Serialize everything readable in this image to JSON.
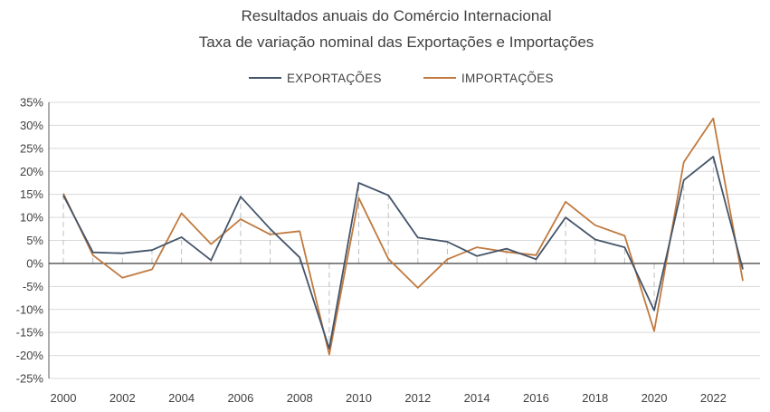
{
  "chart_data": {
    "type": "line",
    "title": "Resultados anuais do Comércio Internacional",
    "subtitle": "Taxa de variação nominal das Exportações e Importações",
    "xlabel": "",
    "ylabel": "",
    "x": [
      2000,
      2001,
      2002,
      2003,
      2004,
      2005,
      2006,
      2007,
      2008,
      2009,
      2010,
      2011,
      2012,
      2013,
      2014,
      2015,
      2016,
      2017,
      2018,
      2019,
      2020,
      2021,
      2022,
      2023
    ],
    "x_tick_labels": [
      "2000",
      "2002",
      "2004",
      "2006",
      "2008",
      "2010",
      "2012",
      "2014",
      "2016",
      "2018",
      "2020",
      "2022"
    ],
    "ylim": [
      -25,
      35
    ],
    "y_tick_labels": [
      "35%",
      "30%",
      "25%",
      "20%",
      "15%",
      "10%",
      "5%",
      "0%",
      "-5%",
      "-10%",
      "-15%",
      "-20%",
      "-25%"
    ],
    "grid": true,
    "legend_position": "top-center",
    "series": [
      {
        "name": "EXPORTAÇÕES",
        "color": "#44546a",
        "values": [
          14.8,
          2.4,
          2.2,
          2.9,
          5.7,
          0.7,
          14.5,
          7.5,
          1.3,
          -18.5,
          17.5,
          14.8,
          5.6,
          4.7,
          1.6,
          3.2,
          0.9,
          10.0,
          5.2,
          3.5,
          -10.2,
          18.1,
          23.2,
          -1.3
        ]
      },
      {
        "name": "IMPORTAÇÕES",
        "color": "#c07a3f",
        "values": [
          15.2,
          1.8,
          -3.1,
          -1.3,
          10.9,
          4.2,
          9.6,
          6.3,
          7.0,
          -19.8,
          14.2,
          1.0,
          -5.3,
          0.9,
          3.5,
          2.5,
          1.8,
          13.4,
          8.3,
          6.0,
          -14.7,
          22.0,
          31.5,
          -3.8
        ]
      }
    ]
  }
}
